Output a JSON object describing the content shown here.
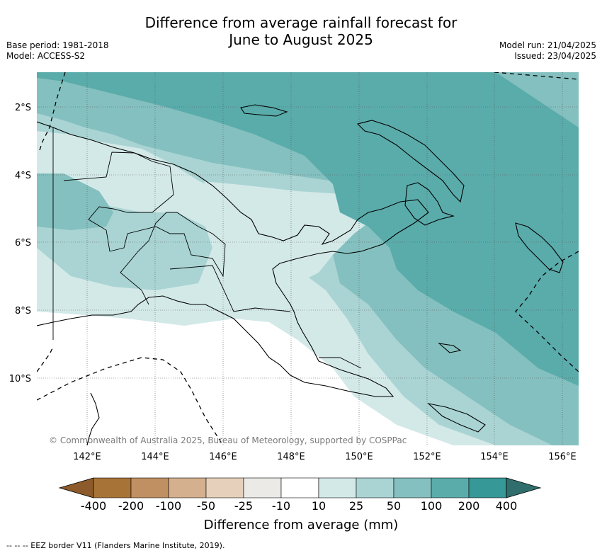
{
  "title_line1": "Difference from average rainfall forecast for",
  "title_line2": "June to August 2025",
  "base_period": "Base period: 1981-2018",
  "model": "Model: ACCESS-S2",
  "model_run": "Model run: 21/04/2025",
  "issued": "Issued: 23/04/2025",
  "copyright": "© Commonwealth of Australia 2025, Bureau of Meteorology, supported by COSPPac",
  "lat_labels": [
    "2°S",
    "4°S",
    "6°S",
    "8°S",
    "10°S"
  ],
  "lon_labels": [
    "142°E",
    "144°E",
    "146°E",
    "148°E",
    "150°E",
    "152°E",
    "154°E",
    "156°E"
  ],
  "colorbar": {
    "title": "Difference from average (mm)",
    "ticks": [
      "-400",
      "-200",
      "-100",
      "-50",
      "-25",
      "-10",
      "10",
      "25",
      "50",
      "100",
      "200",
      "400"
    ],
    "colors": [
      "#8c5a2b",
      "#a87337",
      "#c09062",
      "#d4b08e",
      "#e6d0bb",
      "#ebeae7",
      "#ffffff",
      "#d3e9e8",
      "#a9d4d3",
      "#84c0bf",
      "#5aacab",
      "#369897",
      "#2f6e6d"
    ]
  },
  "footnote": "--  --  -- EEZ border V11 (Flanders Marine Institute, 2019).",
  "regions": [
    {
      "name": "coast-low-zone",
      "category": "10 to 25 mm",
      "color": "#d3e9e8"
    },
    {
      "name": "inland-zone",
      "category": "25 to 50 mm",
      "color": "#a9d4d3"
    },
    {
      "name": "north-zone",
      "category": "50 to 100 mm",
      "color": "#84c0bf"
    },
    {
      "name": "northeast-zone",
      "category": "100 to 200 mm",
      "color": "#5aacab"
    }
  ]
}
